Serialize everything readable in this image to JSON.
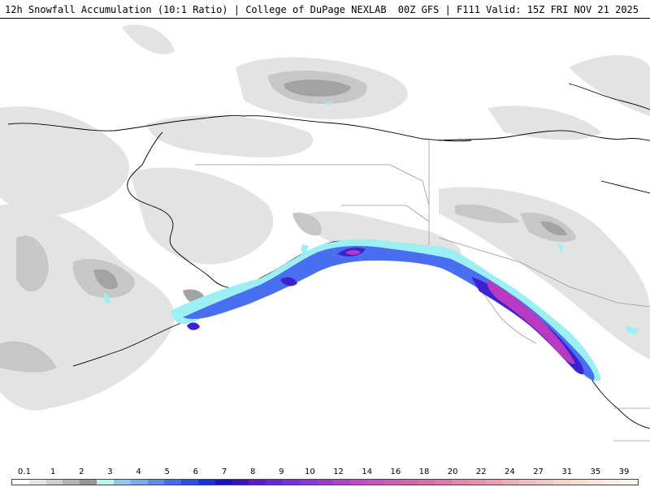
{
  "header": {
    "left_title": "12h Snowfall Accumulation (10:1 Ratio) | College of DuPage NEXLAB",
    "right_title": "00Z GFS | F111 Valid: 15Z FRI NOV 21 2025"
  },
  "map": {
    "region": "Alaska and northwestern Canada",
    "colors": {
      "background": "#ffffff",
      "light_gray": "#e2e2e2",
      "mid_gray": "#c4c4c4",
      "dark_gray": "#a0a0a0",
      "cyan": "#9bf4f4",
      "light_blue": "#6fa8f0",
      "blue": "#2a4fe8",
      "dark_blue": "#1a1ad0",
      "purple": "#7a2ad0",
      "magenta": "#c23ab8",
      "coast": "#000000",
      "borders": "#999999"
    }
  },
  "legend": {
    "labels": [
      "0.1",
      "1",
      "2",
      "3",
      "4",
      "5",
      "6",
      "7",
      "8",
      "9",
      "10",
      "12",
      "14",
      "16",
      "18",
      "20",
      "22",
      "24",
      "27",
      "31",
      "35",
      "39"
    ],
    "colors": [
      "#ffffff",
      "#e6e6e6",
      "#cfcfcf",
      "#b4b4b4",
      "#969696",
      "#b8f6f6",
      "#8cc8f0",
      "#78aaf0",
      "#5a8ce8",
      "#4070e6",
      "#2850e8",
      "#1432e4",
      "#1414c8",
      "#3a14c0",
      "#5a1ec0",
      "#6a28c8",
      "#7a30cc",
      "#8a36d0",
      "#9c3ad0",
      "#ae42cc",
      "#c04ac8",
      "#cc52c0",
      "#d05ab8",
      "#d662b0",
      "#da6aa8",
      "#de78a8",
      "#e286aa",
      "#e692ac",
      "#eaa0b0",
      "#eeaeb4",
      "#f0bcbc",
      "#f4c8c0",
      "#f6d4c8",
      "#f8dcd0",
      "#fae4d8",
      "#fcece0",
      "#fef4ea"
    ]
  }
}
